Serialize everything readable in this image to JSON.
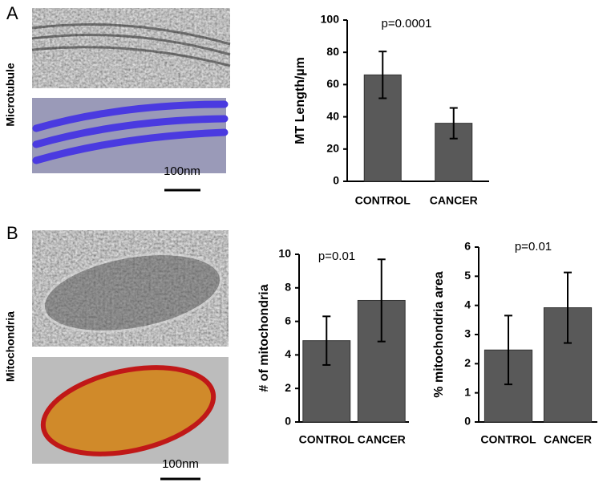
{
  "labels": {
    "panel_a": "A",
    "panel_b": "B",
    "row_a": "Microtubule",
    "row_b": "Mitochondria",
    "scale_a": "100nm",
    "scale_b": "100nm"
  },
  "chart_data": [
    {
      "type": "bar",
      "annotation": "p=0.0001",
      "y_label": "MT Length/µm",
      "categories": [
        "CONTROL",
        "CANCER"
      ],
      "values": [
        66,
        36
      ],
      "errors": [
        14.5,
        9.5
      ],
      "color": "#595959",
      "ylim": [
        0,
        100
      ],
      "yticks": [
        0,
        20,
        40,
        60,
        80,
        100
      ]
    },
    {
      "type": "bar",
      "annotation": "p=0.01",
      "y_label": "# of mitochondria",
      "categories": [
        "CONTROL",
        "CANCER"
      ],
      "values": [
        4.85,
        7.25
      ],
      "errors": [
        1.45,
        2.45
      ],
      "color": "#595959",
      "ylim": [
        0,
        10
      ],
      "yticks": [
        0,
        2,
        4,
        6,
        8,
        10
      ]
    },
    {
      "type": "bar",
      "annotation": "p=0.01",
      "y_label": "% mitochondria area",
      "categories": [
        "CONTROL",
        "CANCER"
      ],
      "values": [
        2.47,
        3.92
      ],
      "errors": [
        1.18,
        1.21
      ],
      "color": "#595959",
      "ylim": [
        0,
        6
      ],
      "yticks": [
        0,
        1,
        2,
        3,
        4,
        5,
        6
      ]
    }
  ]
}
